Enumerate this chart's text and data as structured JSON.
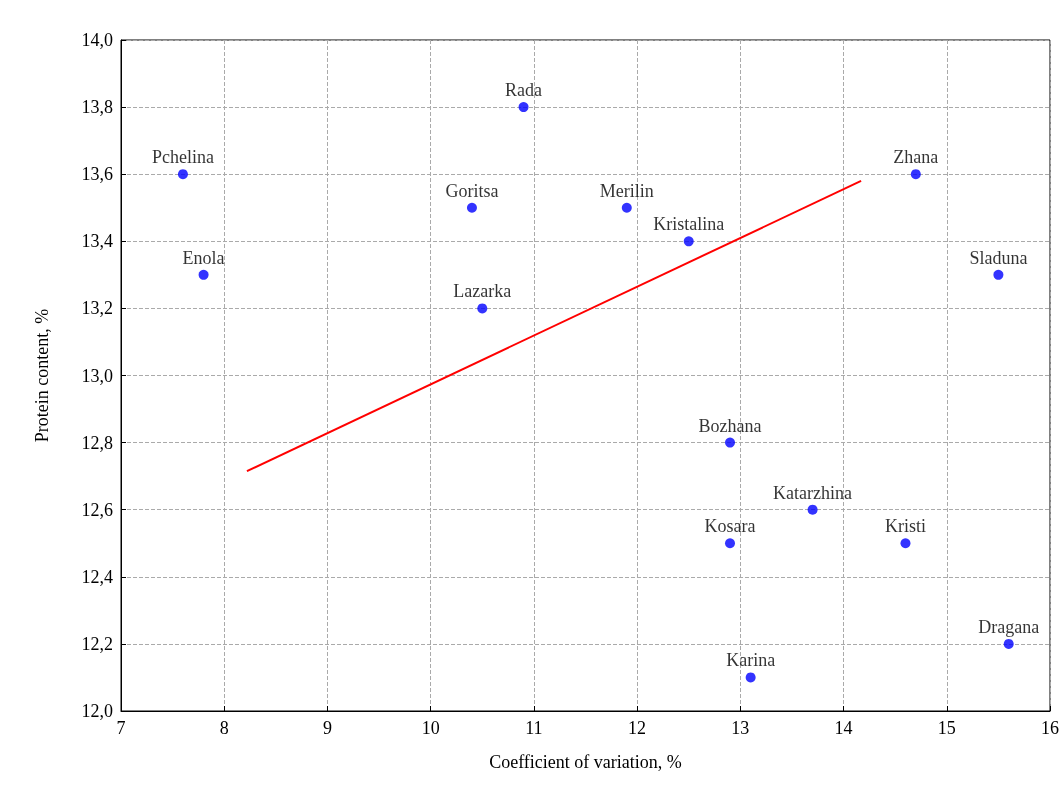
{
  "chart_data": {
    "type": "scatter",
    "xlabel": "Coefficient of variation, %",
    "ylabel": "Protein content, %",
    "x": [
      7.6,
      7.8,
      10.9,
      10.4,
      10.5,
      11.9,
      12.5,
      14.7,
      15.5,
      12.9,
      13.7,
      12.9,
      14.6,
      15.6,
      13.1
    ],
    "series": [
      {
        "color": "#0000ff",
        "values": [
          13.6,
          13.3,
          13.8,
          13.5,
          13.2,
          13.5,
          13.4,
          13.6,
          13.3,
          12.8,
          12.6,
          12.5,
          12.5,
          12.2,
          12.1
        ]
      },
      {
        "type": "line",
        "color": "#ff0000",
        "x": [
          8.22,
          14.17
        ],
        "values": [
          12.715,
          13.58
        ],
        "marker": "none"
      }
    ],
    "annotations": [
      {
        "text": "Pchelina",
        "x": 7.6,
        "y": 13.6
      },
      {
        "text": "Enola",
        "x": 7.8,
        "y": 13.3
      },
      {
        "text": "Rada",
        "x": 10.9,
        "y": 13.8
      },
      {
        "text": "Goritsa",
        "x": 10.4,
        "y": 13.5
      },
      {
        "text": "Lazarka",
        "x": 10.5,
        "y": 13.2
      },
      {
        "text": "Merilin",
        "x": 11.9,
        "y": 13.5
      },
      {
        "text": "Kristalina",
        "x": 12.5,
        "y": 13.4
      },
      {
        "text": "Zhana",
        "x": 14.7,
        "y": 13.6
      },
      {
        "text": "Sladuna",
        "x": 15.5,
        "y": 13.3
      },
      {
        "text": "Bozhana",
        "x": 12.9,
        "y": 12.8
      },
      {
        "text": "Katarzhina",
        "x": 13.7,
        "y": 12.6
      },
      {
        "text": "Kosara",
        "x": 12.9,
        "y": 12.5
      },
      {
        "text": "Kristi",
        "x": 14.6,
        "y": 12.5
      },
      {
        "text": "Dragana",
        "x": 15.6,
        "y": 12.2
      },
      {
        "text": "Karina",
        "x": 13.1,
        "y": 12.1
      }
    ],
    "xlim": [
      7,
      16
    ],
    "xticks": [
      7,
      8,
      9,
      10,
      11,
      12,
      13,
      14,
      15,
      16
    ],
    "ylim": [
      12,
      14
    ],
    "yticks": [
      {
        "value": 12,
        "label": "12,0"
      },
      {
        "value": 12.2,
        "label": "12,2"
      },
      {
        "value": 12.4,
        "label": "12,4"
      },
      {
        "value": 12.6,
        "label": "12,6"
      },
      {
        "value": 12.8,
        "label": "12,8"
      },
      {
        "value": 13,
        "label": "13,0"
      },
      {
        "value": 13.2,
        "label": "13,2"
      },
      {
        "value": 13.4,
        "label": "13,4"
      },
      {
        "value": 13.6,
        "label": "13,6"
      },
      {
        "value": 13.8,
        "label": "13,8"
      },
      {
        "value": 14,
        "label": "14,0"
      }
    ],
    "grid": true,
    "marker": "circle"
  }
}
